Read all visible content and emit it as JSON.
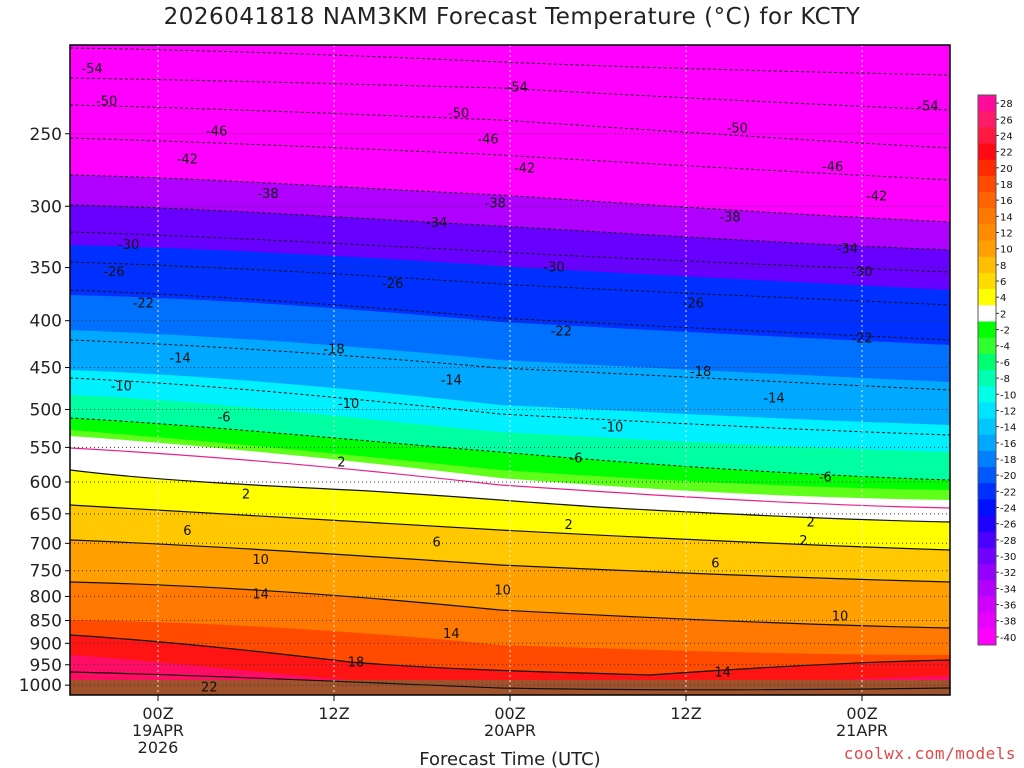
{
  "chart_data": {
    "type": "heatmap",
    "title": "2026041818 NAM3KM Forecast Temperature (°C) for KCTY",
    "xlabel": "Forecast Time (UTC)",
    "ylabel": "",
    "x_range_hours": [
      -6,
      54
    ],
    "x_ticks": [
      {
        "hour": 0,
        "lines": [
          "00Z",
          "19APR",
          "2026"
        ]
      },
      {
        "hour": 12,
        "lines": [
          "12Z"
        ]
      },
      {
        "hour": 24,
        "lines": [
          "00Z",
          "20APR"
        ]
      },
      {
        "hour": 36,
        "lines": [
          "12Z"
        ]
      },
      {
        "hour": 48,
        "lines": [
          "00Z",
          "21APR"
        ]
      }
    ],
    "y_ticks_hpa": [
      250,
      300,
      350,
      400,
      450,
      500,
      550,
      600,
      650,
      700,
      750,
      800,
      850,
      900,
      950,
      1000
    ],
    "y_range_hpa": [
      200,
      1025
    ],
    "colorbar_levels": [
      28,
      26,
      24,
      22,
      20,
      18,
      16,
      14,
      12,
      10,
      8,
      6,
      4,
      2,
      -2,
      -4,
      -6,
      -8,
      -10,
      -12,
      -14,
      -16,
      -18,
      -20,
      -22,
      -24,
      -26,
      -28,
      -30,
      -32,
      -34,
      -36,
      -38,
      -40
    ],
    "colorbar_colors": [
      "#ff0a9a",
      "#ff1a6a",
      "#ff1840",
      "#ff0a14",
      "#ff2a00",
      "#ff4a00",
      "#ff6400",
      "#ff7800",
      "#ff8c00",
      "#ffa000",
      "#ffbe00",
      "#ffdc00",
      "#ffff00",
      "#ffffff",
      "#00ff00",
      "#30ff30",
      "#00ff70",
      "#00ffb0",
      "#00ffe4",
      "#00e4ff",
      "#00c8ff",
      "#00a8ff",
      "#0080ff",
      "#0058ff",
      "#0030ff",
      "#0010ff",
      "#1e00ff",
      "#4a00ff",
      "#7000ff",
      "#9400ff",
      "#b400ff",
      "#d000ff",
      "#e800ff",
      "#ff00ff"
    ],
    "contour_labels": [
      {
        "t": "-54",
        "h": -4.5,
        "p": 212
      },
      {
        "t": "-54",
        "h": 24.5,
        "p": 222
      },
      {
        "t": "-54",
        "h": 52.5,
        "p": 233
      },
      {
        "t": "-50",
        "h": -3.5,
        "p": 230
      },
      {
        "t": "-50",
        "h": 20.5,
        "p": 237
      },
      {
        "t": "-50",
        "h": 39.5,
        "p": 246
      },
      {
        "t": "-46",
        "h": 4,
        "p": 248
      },
      {
        "t": "-46",
        "h": 22.5,
        "p": 253
      },
      {
        "t": "-46",
        "h": 46,
        "p": 271
      },
      {
        "t": "-42",
        "h": 2,
        "p": 266
      },
      {
        "t": "-42",
        "h": 25,
        "p": 272
      },
      {
        "t": "-42",
        "h": 49,
        "p": 292
      },
      {
        "t": "-38",
        "h": 7.5,
        "p": 290
      },
      {
        "t": "-38",
        "h": 23,
        "p": 297
      },
      {
        "t": "-38",
        "h": 39,
        "p": 308
      },
      {
        "t": "-34",
        "h": 19,
        "p": 312
      },
      {
        "t": "-34",
        "h": 47,
        "p": 333
      },
      {
        "t": "-30",
        "h": -2,
        "p": 330
      },
      {
        "t": "-30",
        "h": 27,
        "p": 349
      },
      {
        "t": "-30",
        "h": 48,
        "p": 353
      },
      {
        "t": "-26",
        "h": -3,
        "p": 353
      },
      {
        "t": "-26",
        "h": 16,
        "p": 364
      },
      {
        "t": "-26",
        "h": 36.5,
        "p": 382
      },
      {
        "t": "-22",
        "h": -1,
        "p": 382
      },
      {
        "t": "-22",
        "h": 27.5,
        "p": 410
      },
      {
        "t": "-22",
        "h": 48,
        "p": 417
      },
      {
        "t": "-18",
        "h": 12,
        "p": 429
      },
      {
        "t": "-18",
        "h": 37,
        "p": 454
      },
      {
        "t": "-14",
        "h": 1.5,
        "p": 439
      },
      {
        "t": "-14",
        "h": 20,
        "p": 464
      },
      {
        "t": "-14",
        "h": 42,
        "p": 485
      },
      {
        "t": "-10",
        "h": -2.5,
        "p": 471
      },
      {
        "t": "-10",
        "h": 13,
        "p": 492
      },
      {
        "t": "-10",
        "h": 31,
        "p": 522
      },
      {
        "t": "-6",
        "h": 4.5,
        "p": 509
      },
      {
        "t": "-6",
        "h": 28.5,
        "p": 564
      },
      {
        "t": "-6",
        "h": 45.5,
        "p": 592
      },
      {
        "t": "2",
        "h": 12.5,
        "p": 570
      },
      {
        "t": "2",
        "h": 6,
        "p": 618
      },
      {
        "t": "2",
        "h": 28,
        "p": 667
      },
      {
        "t": "2",
        "h": 44.5,
        "p": 663
      },
      {
        "t": "2",
        "h": 44,
        "p": 694
      },
      {
        "t": "6",
        "h": 2,
        "p": 677
      },
      {
        "t": "6",
        "h": 19,
        "p": 697
      },
      {
        "t": "6",
        "h": 38,
        "p": 735
      },
      {
        "t": "10",
        "h": 7,
        "p": 728
      },
      {
        "t": "10",
        "h": 23.5,
        "p": 786
      },
      {
        "t": "10",
        "h": 46.5,
        "p": 839
      },
      {
        "t": "14",
        "h": 7,
        "p": 794
      },
      {
        "t": "14",
        "h": 20,
        "p": 877
      },
      {
        "t": "14",
        "h": 38.5,
        "p": 966
      },
      {
        "t": "18",
        "h": 13.5,
        "p": 942
      },
      {
        "t": "22",
        "h": 3.5,
        "p": 1003
      }
    ]
  },
  "credit": "coolwx.com/models"
}
